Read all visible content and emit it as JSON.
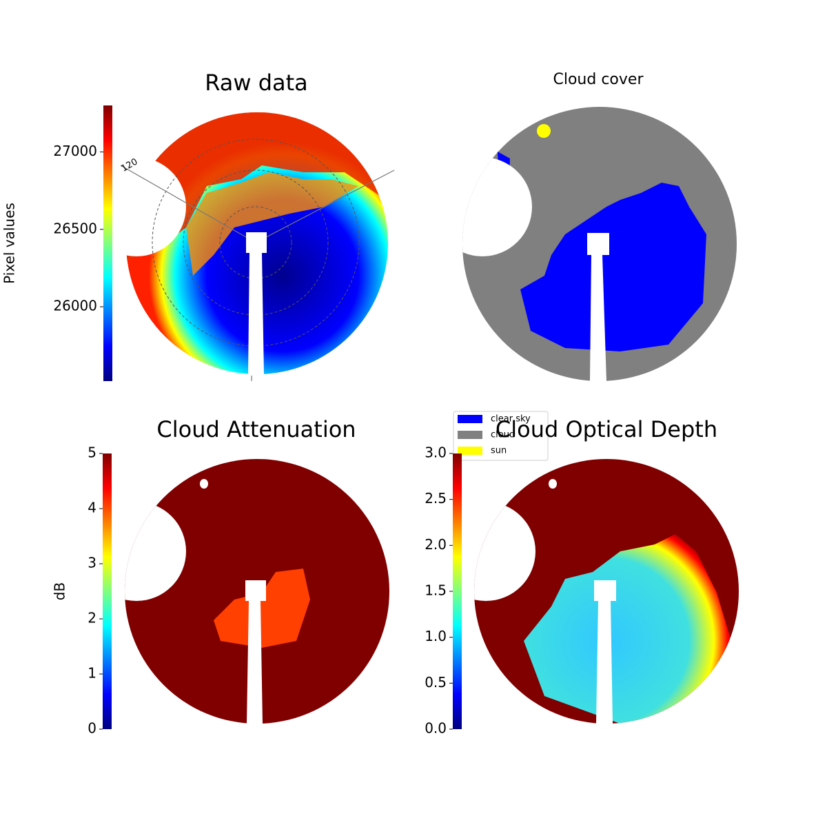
{
  "chart_data": [
    {
      "type": "image",
      "title": "Raw data",
      "ylabel": "Pixel values",
      "ylim": [
        25520,
        27300
      ],
      "yticks": [
        26000,
        26500,
        27000
      ],
      "annotations": [
        "120"
      ]
    },
    {
      "type": "image",
      "title": "Cloud cover",
      "legend": [
        {
          "name": "clear sky",
          "color": "#0000ff"
        },
        {
          "name": "cloud",
          "color": "#808080"
        },
        {
          "name": "sun",
          "color": "#ffff00"
        }
      ]
    },
    {
      "type": "image",
      "title": "Cloud Attenuation",
      "ylabel": "dB",
      "ylim": [
        0,
        5
      ],
      "yticks": [
        0,
        1,
        2,
        3,
        4,
        5
      ]
    },
    {
      "type": "image",
      "title": "Cloud Optical Depth",
      "ylim": [
        0,
        3
      ],
      "yticks": [
        {
          "value": 0,
          "label": "0.0"
        },
        {
          "value": 0.5,
          "label": "0.5"
        },
        {
          "value": 1,
          "label": "1.0"
        },
        {
          "value": 1.5,
          "label": "1.5"
        },
        {
          "value": 2,
          "label": "2.0"
        },
        {
          "value": 2.5,
          "label": "2.5"
        },
        {
          "value": 3,
          "label": "3.0"
        }
      ]
    }
  ]
}
